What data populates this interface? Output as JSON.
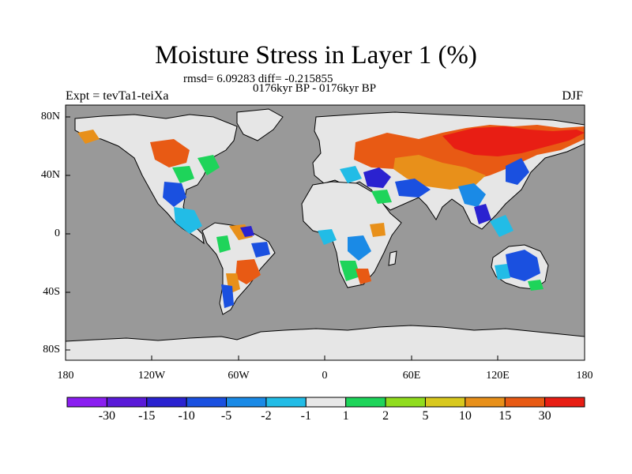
{
  "header": {
    "title": "Moisture Stress in Layer 1 (%)",
    "stats": "rmsd= 6.09283 diff= -0.215855",
    "period": "0176kyr BP - 0176kyr BP",
    "experiment": "Expt = tevTa1-teiXa",
    "season": "DJF"
  },
  "axes": {
    "y_ticks": [
      "80N",
      "40N",
      "0",
      "40S",
      "80S"
    ],
    "x_ticks": [
      "180",
      "120W",
      "60W",
      "0",
      "60E",
      "120E",
      "180"
    ]
  },
  "colorbar": {
    "labels": [
      "-30",
      "-15",
      "-10",
      "-5",
      "-2",
      "-1",
      "1",
      "2",
      "5",
      "10",
      "15",
      "30"
    ],
    "colors": [
      "#8a1ef0",
      "#5a1ad8",
      "#2a22d0",
      "#1a50e0",
      "#1a8ae6",
      "#22bce6",
      "#e8e8e8",
      "#1ed45a",
      "#90dc1e",
      "#d8c81e",
      "#e8901a",
      "#e85a14",
      "#e81e14"
    ]
  },
  "map": {
    "ocean_color": "#999999",
    "land_color": "#e6e6e6",
    "coastline_color": "#000000"
  }
}
